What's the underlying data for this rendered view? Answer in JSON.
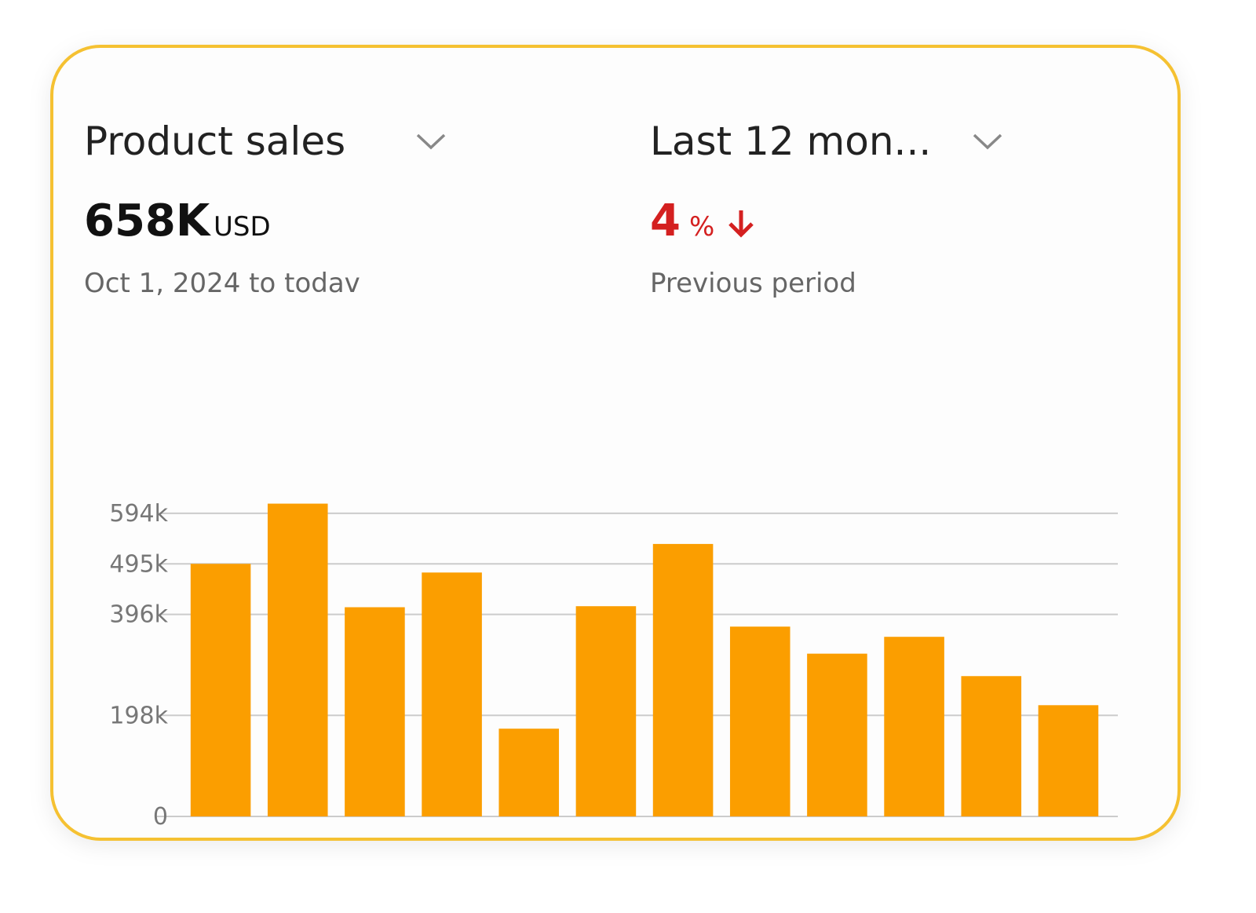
{
  "widget": {
    "metric_selector": "Product sales",
    "total_value": "658K",
    "total_unit": "USD",
    "date_range": "Oct 1, 2024 to todav",
    "period_selector": "Last 12 mon...",
    "change_value": 4,
    "change_unit": "%",
    "change_caption": "Previous period"
  },
  "chart_data": {
    "type": "bar",
    "values": [
      495000,
      613000,
      410000,
      478000,
      172000,
      412000,
      534000,
      372000,
      319000,
      352000,
      275000,
      218000
    ],
    "color": "#fb9e00",
    "ylim": [
      0,
      620000
    ],
    "yticks": [
      0,
      {
        "value": 198000,
        "label": "198k"
      },
      {
        "value": 396000,
        "label": "396k"
      },
      {
        "value": 495000,
        "label": "495k"
      },
      {
        "value": 594000,
        "label": "594k"
      }
    ],
    "grid": true
  }
}
